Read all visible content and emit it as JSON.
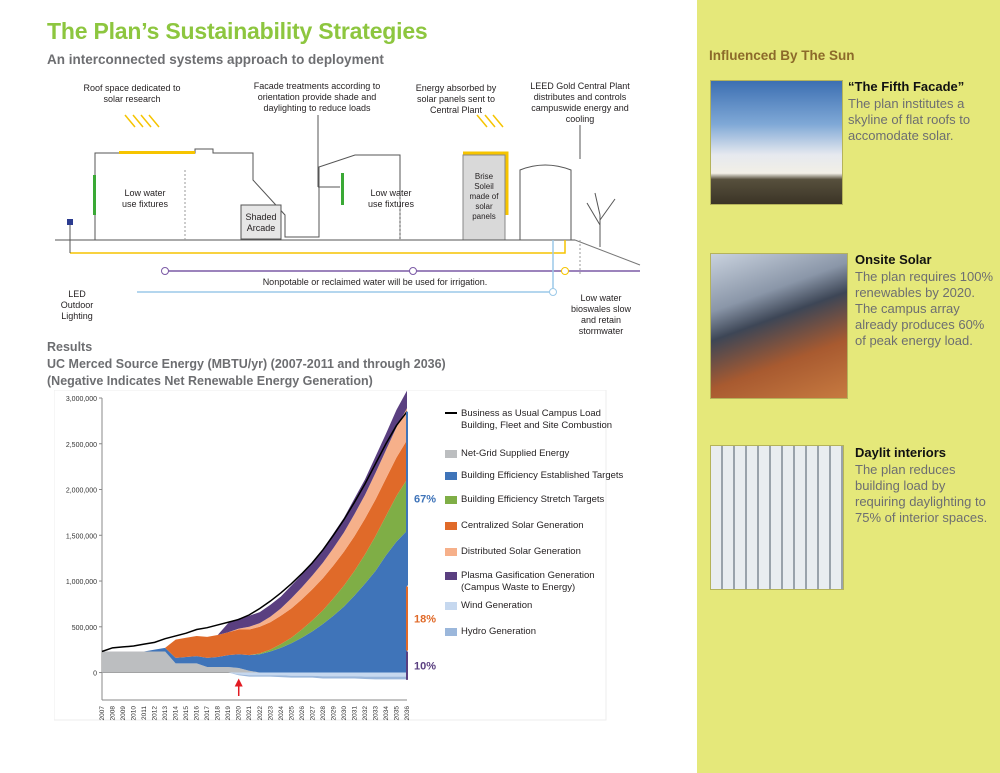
{
  "page": {
    "title": "The Plan’s Sustainability Strategies",
    "subtitle": "An interconnected systems approach to deployment"
  },
  "diagram": {
    "labels": {
      "roof_space": "Roof space dedicated to solar research",
      "facade": "Facade treatments according to orientation provide shade and daylighting to reduce loads",
      "energy_absorbed": "Energy absorbed by solar panels sent to Central Plant",
      "leed_plant": "LEED Gold Central Plant distributes and controls campuswide energy and cooling",
      "low_water_1": "Low water use fixtures",
      "shaded_arcade": "Shaded Arcade",
      "low_water_2": "Low water use fixtures",
      "brise_soleil": "Brise Soleil made of solar panels",
      "nonpotable": "Nonpotable or reclaimed water will be used for irrigation.",
      "led_lighting": "LED Outdoor Lighting",
      "bioswales": "Low water bioswales slow and retain stormwater"
    }
  },
  "results": {
    "heading": "Results",
    "chart_title": "UC Merced Source Energy (MBTU/yr)  (2007-2011 and through 2036)",
    "chart_subtitle": "(Negative Indicates Net Renewable Energy Generation)"
  },
  "chart_data": {
    "type": "area",
    "title": "UC Merced Source Energy (MBTU/yr)  (2007-2011 and through 2036)",
    "subtitle": "(Negative Indicates Net Renewable Energy Generation)",
    "xlabel": "",
    "ylabel": "",
    "ylim": [
      -300000,
      3000000
    ],
    "y_ticks": [
      "3,000,000",
      "2,500,000",
      "2,000,000",
      "1,500,000",
      "1,000,000",
      "500,000",
      "0"
    ],
    "y_tick_values": [
      3000000,
      2500000,
      2000000,
      1500000,
      1000000,
      500000,
      0
    ],
    "x": [
      "2007",
      "2008",
      "2009",
      "2010",
      "2011",
      "2012",
      "2013",
      "2014",
      "2015",
      "2016",
      "2017",
      "2018",
      "2019",
      "2020",
      "2021",
      "2022",
      "2023",
      "2024",
      "2025",
      "2026",
      "2027",
      "2028",
      "2029",
      "2030",
      "2031",
      "2032",
      "2033",
      "2034",
      "2035",
      "2036"
    ],
    "series": [
      {
        "name": "Business as Usual Campus Load Building, Fleet and Site Combustion",
        "color": "#000000",
        "values": [
          230000,
          270000,
          280000,
          290000,
          310000,
          330000,
          370000,
          400000,
          430000,
          470000,
          490000,
          520000,
          550000,
          580000,
          630000,
          700000,
          780000,
          870000,
          970000,
          1080000,
          1200000,
          1340000,
          1500000,
          1670000,
          1860000,
          2060000,
          2280000,
          2500000,
          2700000,
          2850000
        ]
      },
      {
        "name": "Net-Grid Supplied Energy",
        "color": "#bcbec0",
        "values": [
          230000,
          230000,
          230000,
          230000,
          230000,
          230000,
          230000,
          100000,
          100000,
          100000,
          60000,
          60000,
          60000,
          50000,
          20000,
          0,
          0,
          0,
          0,
          0,
          0,
          0,
          0,
          0,
          0,
          0,
          0,
          0,
          0,
          0
        ]
      },
      {
        "name": "Building Efficiency Established Targets",
        "color": "#3f74b9",
        "values": [
          0,
          0,
          0,
          0,
          0,
          20000,
          40000,
          60000,
          70000,
          80000,
          100000,
          110000,
          130000,
          150000,
          170000,
          200000,
          230000,
          270000,
          320000,
          380000,
          450000,
          530000,
          620000,
          720000,
          840000,
          970000,
          1110000,
          1280000,
          1430000,
          1550000
        ]
      },
      {
        "name": "Building Efficiency Stretch Targets",
        "color": "#7fae46",
        "values": [
          0,
          0,
          0,
          0,
          0,
          0,
          0,
          0,
          0,
          0,
          0,
          0,
          0,
          0,
          0,
          10000,
          20000,
          40000,
          60000,
          90000,
          120000,
          150000,
          190000,
          230000,
          270000,
          320000,
          380000,
          430000,
          500000,
          560000
        ]
      },
      {
        "name": "Centralized Solar Generation",
        "color": "#e06a29",
        "values": [
          0,
          0,
          0,
          0,
          0,
          0,
          0,
          200000,
          210000,
          220000,
          230000,
          240000,
          250000,
          270000,
          280000,
          290000,
          300000,
          310000,
          320000,
          330000,
          340000,
          350000,
          360000,
          370000,
          380000,
          390000,
          400000,
          410000,
          420000,
          430000
        ]
      },
      {
        "name": "Distributed Solar Generation",
        "color": "#f6b08a",
        "values": [
          0,
          0,
          0,
          0,
          0,
          0,
          0,
          0,
          0,
          0,
          0,
          0,
          0,
          10000,
          30000,
          40000,
          60000,
          80000,
          110000,
          130000,
          150000,
          170000,
          190000,
          210000,
          240000,
          260000,
          290000,
          310000,
          330000,
          350000
        ]
      },
      {
        "name": "Plasma Gasification Generation (Campus Waste to Energy)",
        "color": "#5a3f80",
        "values": [
          0,
          0,
          0,
          0,
          0,
          0,
          0,
          0,
          0,
          0,
          0,
          0,
          100000,
          110000,
          120000,
          120000,
          130000,
          130000,
          140000,
          140000,
          150000,
          150000,
          160000,
          160000,
          170000,
          170000,
          180000,
          180000,
          190000,
          190000
        ]
      },
      {
        "name": "Wind Generation",
        "color": "#c6d8ef",
        "values": [
          0,
          0,
          0,
          0,
          0,
          0,
          0,
          0,
          0,
          0,
          0,
          0,
          0,
          -20000,
          -30000,
          -30000,
          -30000,
          -30000,
          -35000,
          -35000,
          -35000,
          -40000,
          -40000,
          -40000,
          -40000,
          -45000,
          -45000,
          -45000,
          -45000,
          -45000
        ]
      },
      {
        "name": "Hydro Generation",
        "color": "#9bb7db",
        "values": [
          0,
          0,
          0,
          0,
          0,
          0,
          0,
          0,
          0,
          0,
          0,
          0,
          0,
          -10000,
          -15000,
          -15000,
          -15000,
          -20000,
          -20000,
          -20000,
          -20000,
          -25000,
          -25000,
          -25000,
          -25000,
          -25000,
          -30000,
          -30000,
          -30000,
          -30000
        ]
      }
    ],
    "annotations": [
      {
        "text": "67%",
        "color": "#3f74b9"
      },
      {
        "text": "18%",
        "color": "#e06a29"
      },
      {
        "text": "10%",
        "color": "#5a3f80"
      }
    ],
    "marker_year": "2020",
    "legend_placement": "right",
    "grid": false
  },
  "sidebar": {
    "heading": "Influenced By The Sun",
    "items": [
      {
        "title": "“The Fifth Facade”",
        "text": "The plan institutes a skyline of flat roofs to accomodate solar."
      },
      {
        "title": "Onsite Solar",
        "text": " The plan requires 100% renewables by 2020. The campus array already produces 60% of peak energy load."
      },
      {
        "title": "Daylit interiors",
        "text": "The plan reduces building load by requiring daylighting to 75% of interior spaces."
      }
    ]
  },
  "colors": {
    "accent_green": "#8dc63f",
    "sidebar_bg": "#e5e87a",
    "sidebar_heading": "#8c6a2a",
    "solar_yellow": "#f6c400",
    "water_blue": "#9cc9e8",
    "irrigation_purple": "#7b5aa6"
  }
}
